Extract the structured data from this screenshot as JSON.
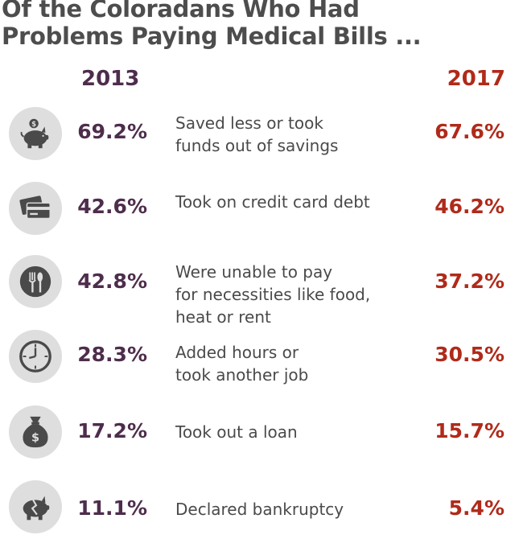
{
  "chart_data": {
    "type": "table",
    "title": "Of the Coloradans Who Had Problems Paying Medical Bills ...",
    "title_lines": [
      "Of the Coloradans Who Had",
      "Problems Paying Medical Bills ..."
    ],
    "columns": [
      "2013",
      "2017"
    ],
    "colors": {
      "2013": "#4e2d4c",
      "2017": "#b02a1a",
      "icon_bg": "#dedede",
      "icon_fg": "#4a4a4a"
    },
    "rows": [
      {
        "icon": "piggy-bank-icon",
        "label": "Saved less or took\nfunds out of savings",
        "v2013": "69.2%",
        "v2017": "67.6%"
      },
      {
        "icon": "credit-card-icon",
        "label": "Took on credit card debt",
        "v2013": "42.6%",
        "v2017": "46.2%"
      },
      {
        "icon": "food-utensils-icon",
        "label": "Were unable to pay\nfor necessities like food,\nheat or rent",
        "v2013": "42.8%",
        "v2017": "37.2%"
      },
      {
        "icon": "clock-icon",
        "label": "Added hours or\ntook another job",
        "v2013": "28.3%",
        "v2017": "30.5%"
      },
      {
        "icon": "money-bag-icon",
        "label": "Took out a loan",
        "v2013": "17.2%",
        "v2017": "15.7%"
      },
      {
        "icon": "broken-piggy-bank-icon",
        "label": "Declared bankruptcy",
        "v2013": "11.1%",
        "v2017": "5.4%"
      }
    ]
  }
}
